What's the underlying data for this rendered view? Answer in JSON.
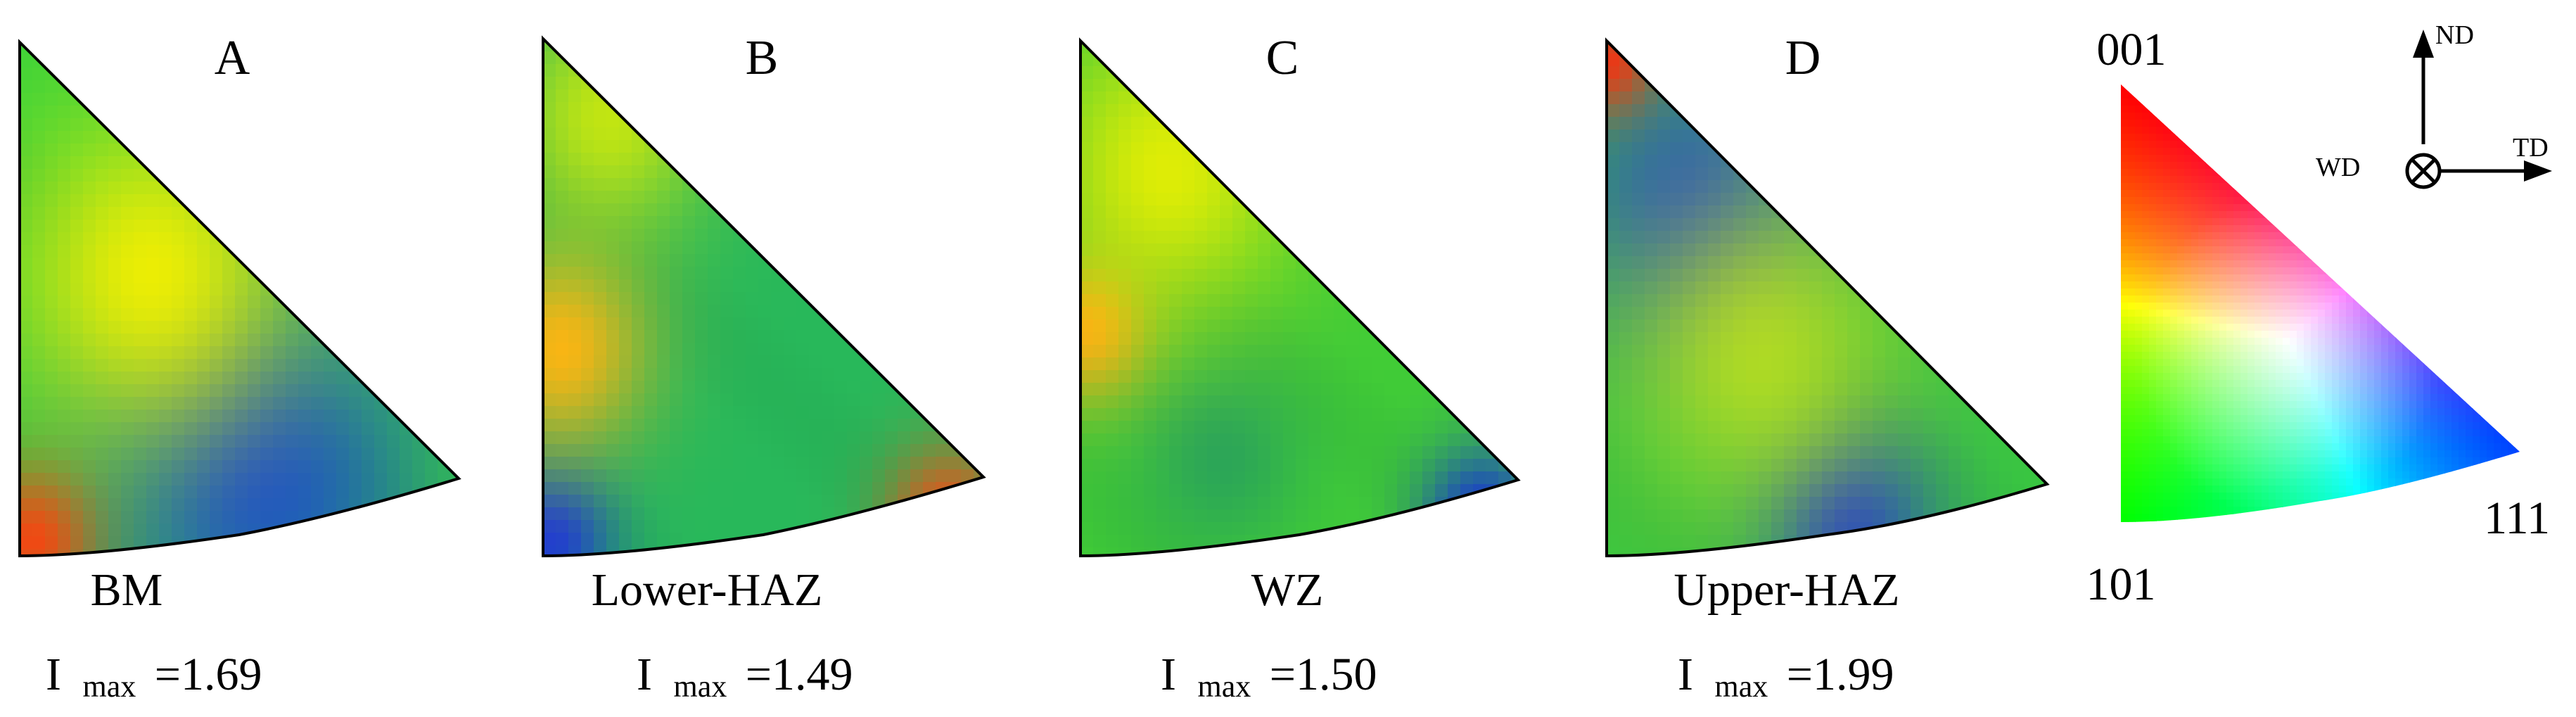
{
  "panels": [
    {
      "letter": "A",
      "name": "BM",
      "imax_prefix": "I",
      "imax_sub": "max",
      "imax_value": "=1.69",
      "colors": {
        "base": "#38d23a",
        "hot": [
          {
            "u": 0.03,
            "v": 0.03,
            "s": 0.1,
            "color": "#f04414",
            "strength": 1.0
          },
          {
            "u": 0.3,
            "v": 0.55,
            "s": 0.22,
            "color": "#f5f000",
            "strength": 0.95
          }
        ],
        "cold": [
          {
            "u": 0.55,
            "v": 0.15,
            "s": 0.26,
            "color": "#1850c8",
            "strength": 1.0
          }
        ]
      }
    },
    {
      "letter": "B",
      "name": "Lower-HAZ",
      "imax_prefix": "I",
      "imax_sub": "max",
      "imax_value": "=1.49",
      "colors": {
        "base": "#28b85a",
        "hot": [
          {
            "u": 0.04,
            "v": 0.4,
            "s": 0.14,
            "color": "#f8b414",
            "strength": 1.0
          },
          {
            "u": 0.92,
            "v": 0.07,
            "s": 0.1,
            "color": "#e8541a",
            "strength": 1.0
          },
          {
            "u": 0.15,
            "v": 0.85,
            "s": 0.16,
            "color": "#e8f000",
            "strength": 0.8
          }
        ],
        "cold": [
          {
            "u": 0.02,
            "v": 0.03,
            "s": 0.1,
            "color": "#1c3cd2",
            "strength": 1.0
          }
        ]
      }
    },
    {
      "letter": "C",
      "name": "WZ",
      "imax_prefix": "I",
      "imax_sub": "max",
      "imax_value": "=1.50",
      "colors": {
        "base": "#40cc36",
        "hot": [
          {
            "u": 0.02,
            "v": 0.44,
            "s": 0.1,
            "color": "#f8a818",
            "strength": 1.0
          },
          {
            "u": 0.2,
            "v": 0.75,
            "s": 0.2,
            "color": "#f0f000",
            "strength": 0.9
          }
        ],
        "cold": [
          {
            "u": 0.92,
            "v": 0.07,
            "s": 0.1,
            "color": "#1838d0",
            "strength": 1.0
          },
          {
            "u": 0.32,
            "v": 0.2,
            "s": 0.14,
            "color": "#1a8a70",
            "strength": 0.6
          }
        ]
      }
    },
    {
      "letter": "D",
      "name": "Upper-HAZ",
      "imax_prefix": "I",
      "imax_sub": "max",
      "imax_value": "=1.99",
      "colors": {
        "base": "#38c640",
        "hot": [
          {
            "u": 0.01,
            "v": 0.96,
            "s": 0.07,
            "color": "#e83818",
            "strength": 1.0
          },
          {
            "u": 0.35,
            "v": 0.4,
            "s": 0.22,
            "color": "#d8ec10",
            "strength": 0.75
          }
        ],
        "cold": [
          {
            "u": 0.2,
            "v": 0.68,
            "s": 0.2,
            "color": "#2050c0",
            "strength": 1.0
          },
          {
            "u": 0.55,
            "v": 0.07,
            "s": 0.14,
            "color": "#1a40c8",
            "strength": 1.0
          }
        ]
      }
    }
  ],
  "key": {
    "corner_001": "001",
    "corner_101": "101",
    "corner_111": "111"
  },
  "frame_axes": {
    "nd": "ND",
    "td": "TD",
    "wd": "WD"
  }
}
